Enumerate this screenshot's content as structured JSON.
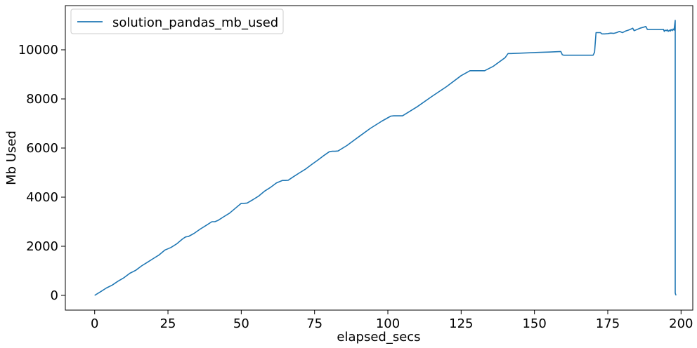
{
  "chart_data": {
    "type": "line",
    "xlabel": "elapsed_secs",
    "ylabel": "Mb Used",
    "xlim": [
      -10,
      204
    ],
    "ylim": [
      -600,
      11800
    ],
    "xticks": [
      0,
      25,
      50,
      75,
      100,
      125,
      150,
      175,
      200
    ],
    "yticks": [
      0,
      2000,
      4000,
      6000,
      8000,
      10000
    ],
    "grid": false,
    "legend": "top-left",
    "series": [
      {
        "name": "solution_pandas_mb_used",
        "color": "#1f77b4",
        "x": [
          0,
          2,
          4,
          6,
          8,
          10,
          12,
          14,
          16,
          18,
          20,
          22,
          24,
          26,
          28,
          30,
          31,
          32,
          34,
          36,
          38,
          40,
          41,
          42,
          44,
          46,
          48,
          50,
          51,
          52,
          54,
          56,
          58,
          60,
          62,
          64,
          65,
          66,
          68,
          70,
          72,
          74,
          76,
          78,
          80,
          81,
          82,
          83,
          86,
          90,
          94,
          98,
          101,
          102,
          103,
          104,
          105,
          110,
          115,
          120,
          125,
          128,
          130,
          132,
          133,
          136,
          140,
          141,
          142,
          150,
          155,
          159,
          159.5,
          160,
          165,
          170,
          170.5,
          171,
          171.5,
          172,
          172.5,
          173,
          174,
          175,
          176,
          177,
          178,
          179,
          180,
          181,
          182,
          183,
          183.5,
          184,
          186,
          188,
          188.5,
          190,
          192,
          194,
          194.3,
          194.6,
          195,
          195.3,
          195.6,
          196,
          196.3,
          196.6,
          197,
          197.3,
          197.6,
          198,
          198,
          198.2,
          198.4
        ],
        "values": [
          0,
          150,
          300,
          420,
          580,
          720,
          900,
          1020,
          1200,
          1350,
          1500,
          1650,
          1850,
          1950,
          2100,
          2300,
          2380,
          2400,
          2530,
          2700,
          2850,
          3000,
          3000,
          3050,
          3200,
          3350,
          3550,
          3750,
          3750,
          3760,
          3900,
          4050,
          4250,
          4400,
          4580,
          4680,
          4680,
          4690,
          4850,
          5000,
          5150,
          5330,
          5500,
          5680,
          5850,
          5870,
          5870,
          5880,
          6100,
          6450,
          6800,
          7100,
          7300,
          7310,
          7310,
          7310,
          7310,
          7680,
          8100,
          8500,
          8950,
          9150,
          9150,
          9150,
          9150,
          9330,
          9680,
          9850,
          9850,
          9890,
          9910,
          9930,
          9800,
          9780,
          9780,
          9780,
          9900,
          10700,
          10700,
          10700,
          10700,
          10650,
          10650,
          10660,
          10680,
          10670,
          10700,
          10750,
          10700,
          10760,
          10800,
          10850,
          10880,
          10780,
          10880,
          10950,
          10830,
          10830,
          10830,
          10830,
          10750,
          10800,
          10780,
          10820,
          10750,
          10800,
          10760,
          10830,
          10780,
          10850,
          10800,
          11200,
          100,
          20,
          20
        ]
      }
    ]
  }
}
